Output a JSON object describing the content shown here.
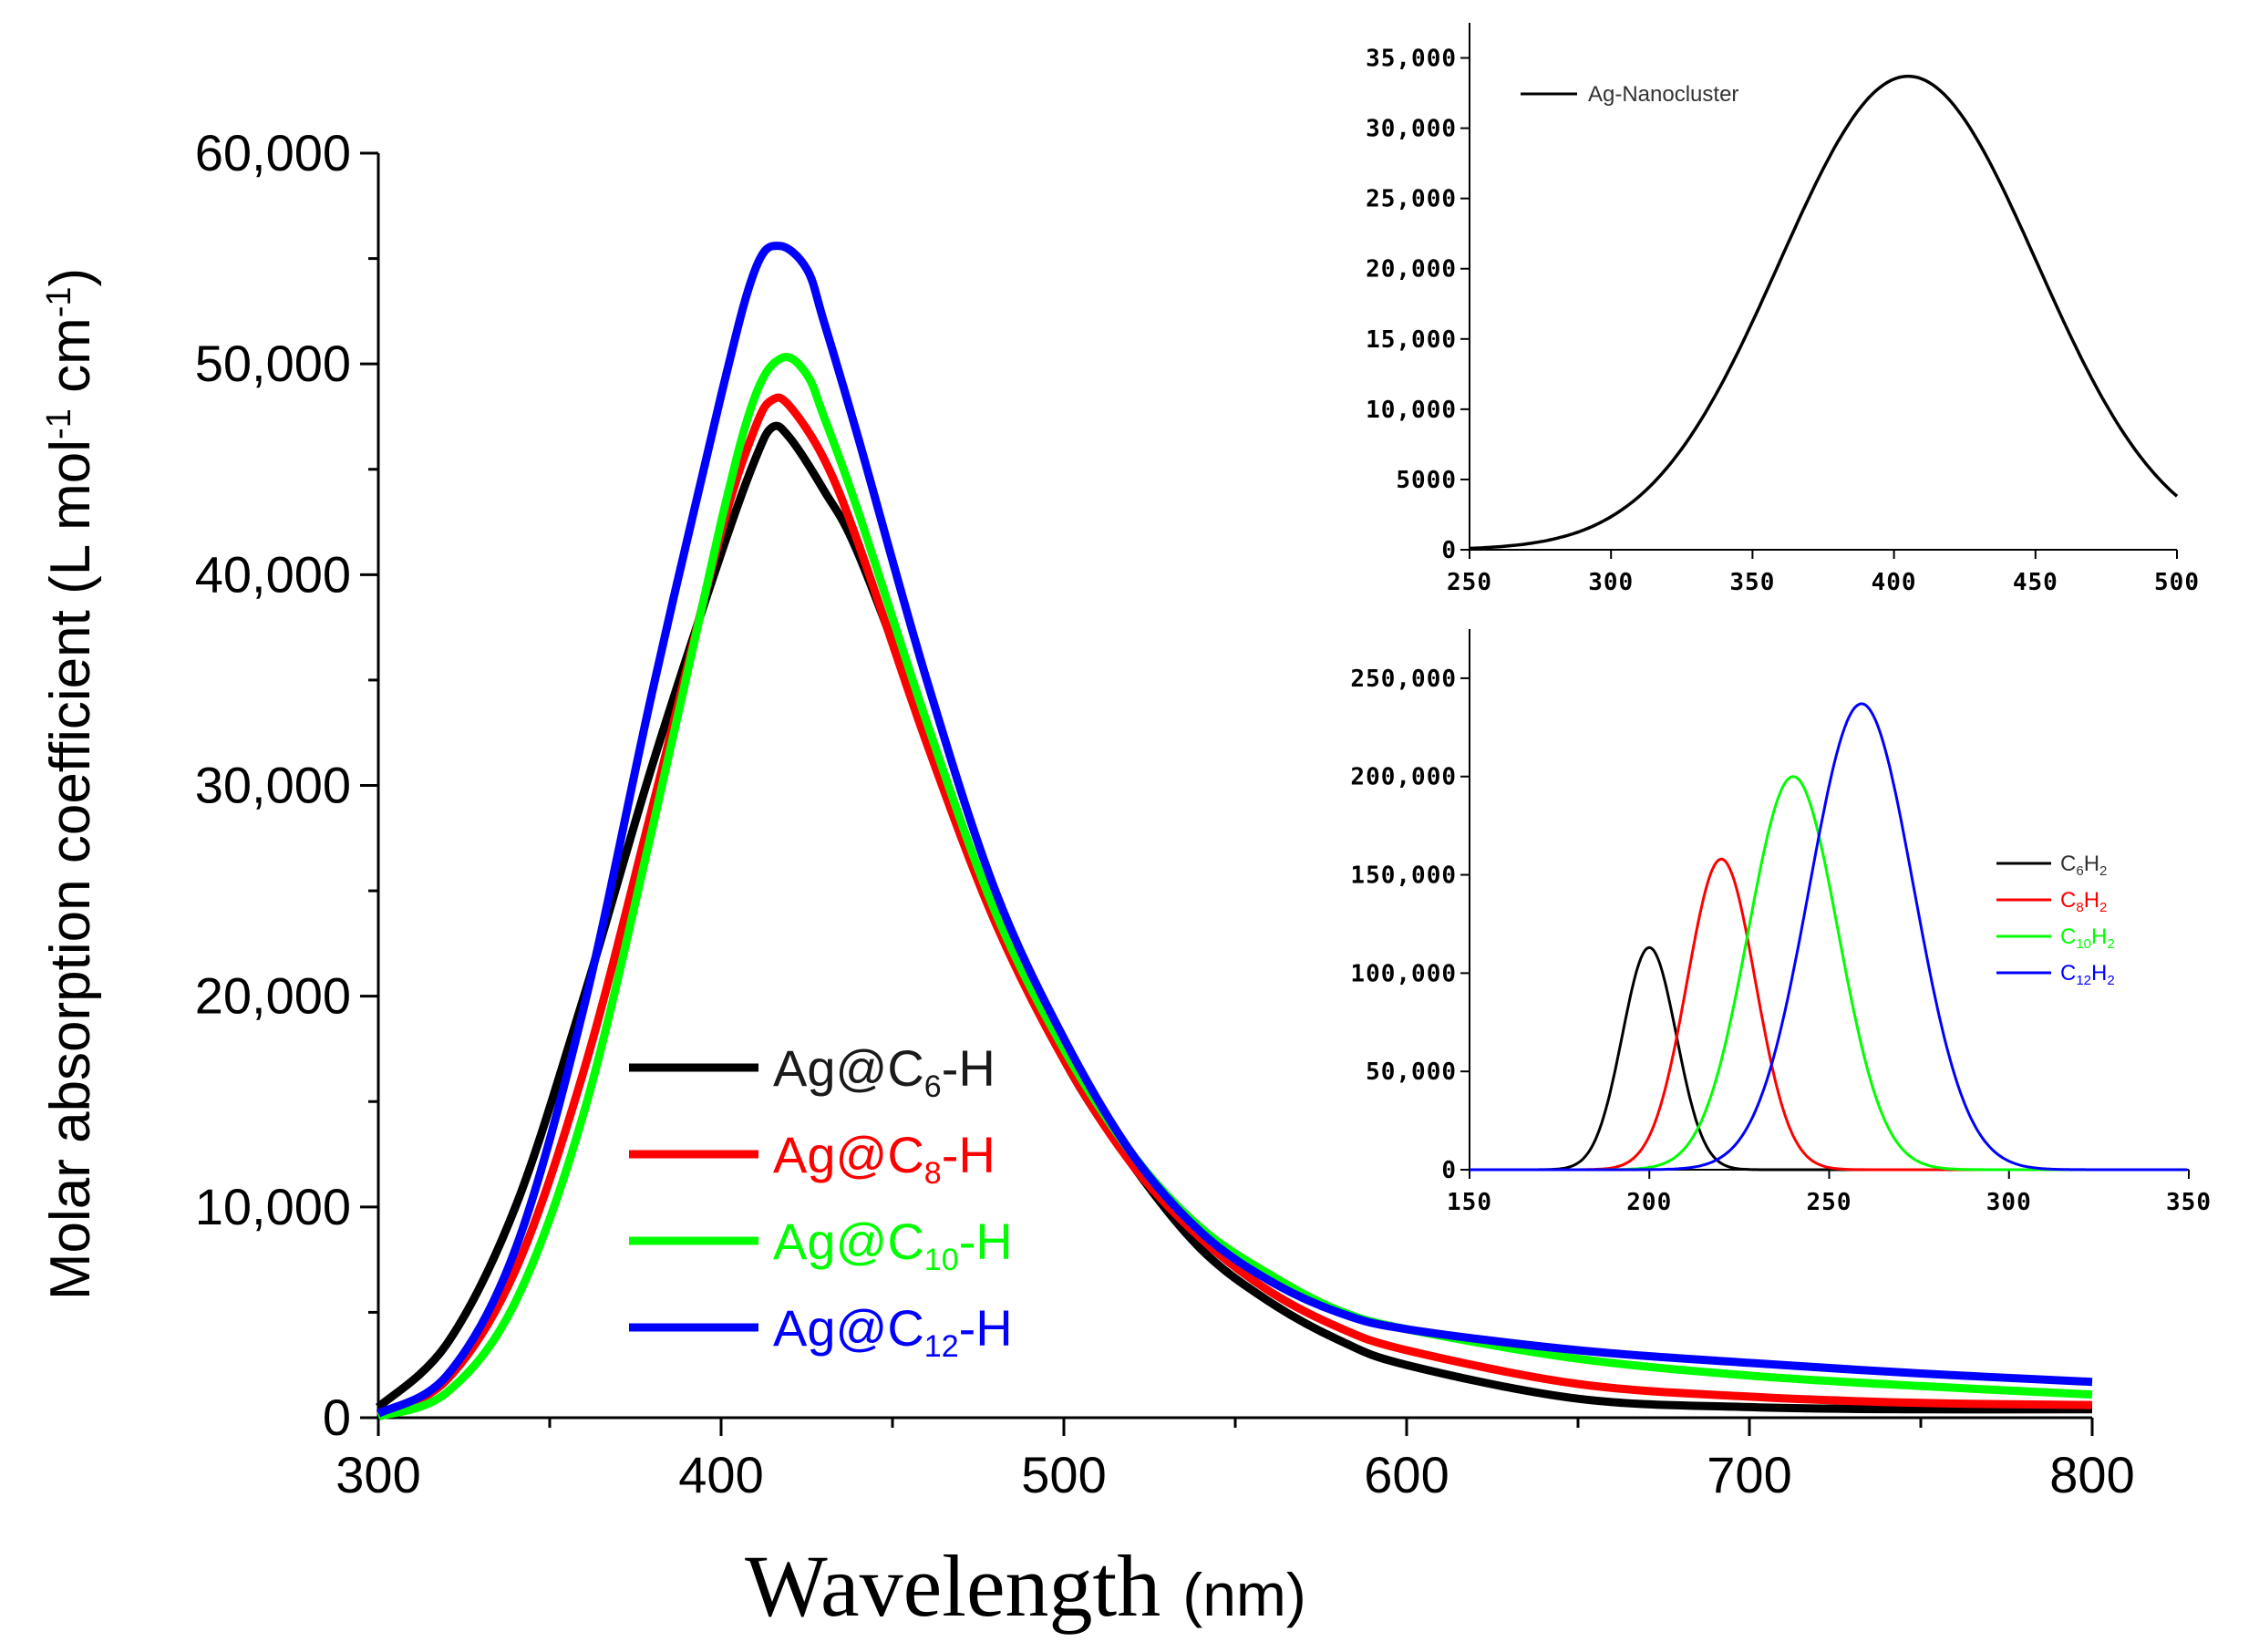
{
  "chart_data": [
    {
      "id": "main",
      "type": "line",
      "title": "",
      "xlabel": "Wavelength",
      "xlabel_unit": "(nm)",
      "ylabel": "Molar absorption coefficient (L mol",
      "ylabel_unit_cm": " cm",
      "ylabel_sup": "-1",
      "ylabel_close": ")",
      "xlim": [
        300,
        800
      ],
      "ylim": [
        0,
        60000
      ],
      "xticks": [
        300,
        400,
        500,
        600,
        700,
        800
      ],
      "xtick_labels": [
        "300",
        "400",
        "500",
        "600",
        "700",
        "800"
      ],
      "yticks": [
        0,
        10000,
        20000,
        30000,
        40000,
        50000,
        60000
      ],
      "ytick_labels": [
        "0",
        "10,000",
        "20,000",
        "30,000",
        "40,000",
        "50,000",
        "60,000"
      ],
      "grid": false,
      "legend_position": "center-bottom",
      "series": [
        {
          "name": "Ag@C6-H",
          "label_prefix": "Ag@C",
          "label_sub": "6",
          "label_suffix": "-H",
          "color": "#000000",
          "x": [
            300,
            320,
            340,
            360,
            380,
            400,
            410,
            415,
            420,
            430,
            440,
            460,
            480,
            500,
            520,
            540,
            560,
            580,
            600,
            650,
            700,
            750,
            800
          ],
          "y": [
            500,
            3500,
            10000,
            20000,
            31000,
            41000,
            45500,
            47000,
            46500,
            44000,
            41000,
            32500,
            24000,
            17000,
            12000,
            8000,
            5500,
            3700,
            2500,
            900,
            500,
            400,
            400
          ]
        },
        {
          "name": "Ag@C8-H",
          "label_prefix": "Ag@C",
          "label_sub": "8",
          "label_suffix": "-H",
          "color": "#ff0000",
          "x": [
            300,
            320,
            340,
            360,
            380,
            400,
            410,
            415,
            420,
            430,
            440,
            460,
            480,
            500,
            520,
            540,
            560,
            580,
            600,
            650,
            700,
            750,
            800
          ],
          "y": [
            100,
            1800,
            7000,
            16500,
            29000,
            42000,
            47000,
            48300,
            48000,
            45500,
            41500,
            32000,
            23500,
            17000,
            12000,
            8500,
            6000,
            4300,
            3200,
            1600,
            1000,
            700,
            600
          ]
        },
        {
          "name": "Ag@C10-H",
          "label_prefix": "Ag@C",
          "label_sub": "10",
          "label_suffix": "-H",
          "color": "#00ff00",
          "x": [
            300,
            320,
            340,
            360,
            380,
            400,
            410,
            418,
            425,
            430,
            440,
            460,
            480,
            500,
            520,
            540,
            560,
            580,
            600,
            650,
            700,
            750,
            800
          ],
          "y": [
            50,
            1200,
            5500,
            14500,
            28000,
            42500,
            48500,
            50300,
            49500,
            47500,
            43000,
            33000,
            24000,
            17500,
            12500,
            9000,
            6800,
            5100,
            4200,
            2800,
            2000,
            1500,
            1100
          ]
        },
        {
          "name": "Ag@C12-H",
          "label_prefix": "Ag@C",
          "label_sub": "12",
          "label_suffix": "-H",
          "color": "#0000ff",
          "x": [
            300,
            320,
            340,
            360,
            380,
            400,
            410,
            417,
            425,
            430,
            440,
            460,
            480,
            500,
            520,
            540,
            560,
            580,
            600,
            650,
            700,
            750,
            800
          ],
          "y": [
            200,
            2000,
            8000,
            19500,
            34500,
            48500,
            54500,
            55600,
            54500,
            52000,
            46500,
            35000,
            25000,
            18000,
            12500,
            8800,
            6500,
            5000,
            4200,
            3200,
            2600,
            2100,
            1700
          ]
        }
      ]
    },
    {
      "id": "inset-top",
      "type": "line",
      "xlim": [
        250,
        500
      ],
      "ylim": [
        0,
        37500
      ],
      "xticks": [
        250,
        300,
        350,
        400,
        450,
        500
      ],
      "xtick_labels": [
        "250",
        "300",
        "350",
        "400",
        "450",
        "500"
      ],
      "yticks": [
        0,
        5000,
        10000,
        15000,
        20000,
        25000,
        30000,
        35000
      ],
      "ytick_labels": [
        "0",
        "5000",
        "10,000",
        "15,000",
        "20,000",
        "25,000",
        "30,000",
        "35,000"
      ],
      "legend_position": "top-left",
      "series": [
        {
          "name": "Ag-Nanocluster",
          "color": "#000000",
          "peak_x": 405,
          "peak_y": 33700,
          "sigma": 45.5,
          "x_end": 500
        }
      ]
    },
    {
      "id": "inset-bottom",
      "type": "line",
      "xlim": [
        150,
        350
      ],
      "ylim": [
        0,
        275000
      ],
      "xticks": [
        150,
        200,
        250,
        300,
        350
      ],
      "xtick_labels": [
        "150",
        "200",
        "250",
        "300",
        "350"
      ],
      "yticks": [
        0,
        50000,
        100000,
        150000,
        200000,
        250000
      ],
      "ytick_labels": [
        "0",
        "50,000",
        "100,000",
        "150,000",
        "200,000",
        "250,000"
      ],
      "legend_position": "right",
      "series": [
        {
          "name": "C6H2",
          "label_c": "C",
          "label_sub1": "6",
          "label_h": "H",
          "label_sub2": "2",
          "color": "#000000",
          "peak_x": 200,
          "peak_y": 113000,
          "sigma": 7.5
        },
        {
          "name": "C8H2",
          "label_c": "C",
          "label_sub1": "8",
          "label_h": "H",
          "label_sub2": "2",
          "color": "#ff0000",
          "peak_x": 220,
          "peak_y": 158000,
          "sigma": 9.5
        },
        {
          "name": "C10H2",
          "label_c": "C",
          "label_sub1": "10",
          "label_h": "H",
          "label_sub2": "2",
          "color": "#00ff00",
          "peak_x": 240,
          "peak_y": 200000,
          "sigma": 12.5
        },
        {
          "name": "C12H2",
          "label_c": "C",
          "label_sub1": "12",
          "label_h": "H",
          "label_sub2": "2",
          "color": "#0000ff",
          "peak_x": 259,
          "peak_y": 237000,
          "sigma": 14.5
        }
      ]
    }
  ]
}
